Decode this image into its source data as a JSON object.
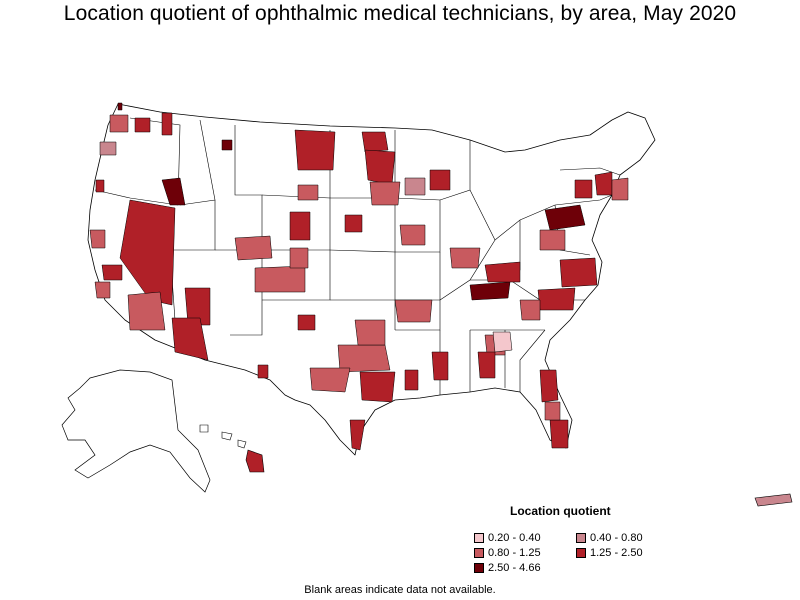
{
  "title": "Location quotient of ophthalmic medical technicians, by area, May 2020",
  "legend": {
    "title": "Location quotient",
    "items": [
      {
        "label": "0.20 - 0.40",
        "color": "#f4c7cc"
      },
      {
        "label": "0.40 - 0.80",
        "color": "#c9868e"
      },
      {
        "label": "0.80 - 1.25",
        "color": "#c85a5f"
      },
      {
        "label": "1.25 - 2.50",
        "color": "#b02028"
      },
      {
        "label": "2.50 - 4.66",
        "color": "#6e0008"
      }
    ]
  },
  "note": "Blank areas indicate data not available.",
  "colors": {
    "blank": "#ffffff",
    "border": "#000000"
  }
}
